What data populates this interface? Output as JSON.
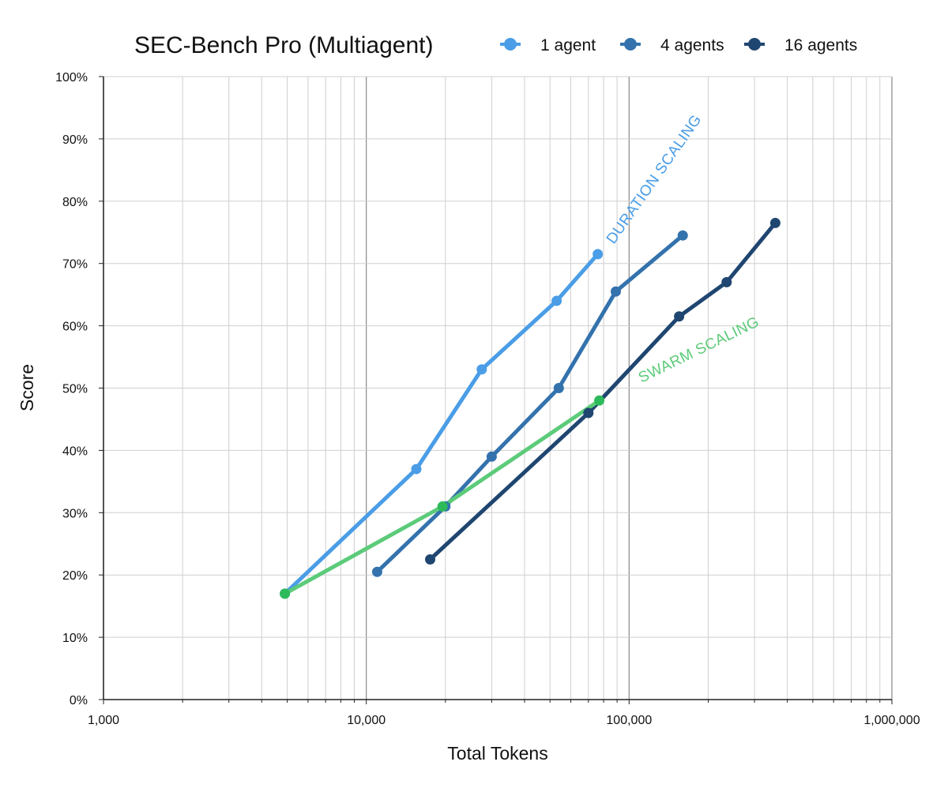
{
  "chart_data": {
    "type": "line",
    "title": "SEC-Bench Pro (Multiagent)",
    "xlabel": "Total Tokens",
    "ylabel": "Score",
    "x_scale": "log",
    "xlim": [
      1000,
      1000000
    ],
    "ylim": [
      0,
      100
    ],
    "x_ticks": [
      {
        "value": 1000,
        "label": "1,000"
      },
      {
        "value": 10000,
        "label": "10,000"
      },
      {
        "value": 100000,
        "label": "100,000"
      },
      {
        "value": 1000000,
        "label": "1,000,000"
      }
    ],
    "y_ticks": [
      {
        "value": 0,
        "label": "0%"
      },
      {
        "value": 10,
        "label": "10%"
      },
      {
        "value": 20,
        "label": "20%"
      },
      {
        "value": 30,
        "label": "30%"
      },
      {
        "value": 40,
        "label": "40%"
      },
      {
        "value": 50,
        "label": "50%"
      },
      {
        "value": 60,
        "label": "60%"
      },
      {
        "value": 70,
        "label": "70%"
      },
      {
        "value": 80,
        "label": "80%"
      },
      {
        "value": 90,
        "label": "90%"
      },
      {
        "value": 100,
        "label": "100%"
      }
    ],
    "grid": true,
    "legend_position": "top-right",
    "series": [
      {
        "name": "1 agent",
        "color": "#4a9de6",
        "x": [
          4900,
          15500,
          27500,
          53000,
          76000
        ],
        "y": [
          17,
          37,
          53,
          64,
          71.5
        ]
      },
      {
        "name": "4 agents",
        "color": "#3372ad",
        "x": [
          11000,
          20000,
          30000,
          54000,
          89000,
          160000
        ],
        "y": [
          20.5,
          31,
          39,
          50,
          65.5,
          74.5
        ]
      },
      {
        "name": "16 agents",
        "color": "#1f4670",
        "x": [
          17500,
          70000,
          155000,
          235000,
          360000
        ],
        "y": [
          22.5,
          46,
          61.5,
          67,
          76.5
        ]
      }
    ],
    "overlay_series": [
      {
        "name": "",
        "color": "#5ccb7a",
        "marker_color": "#2dba5a",
        "x": [
          4900,
          19500,
          77000
        ],
        "y": [
          17,
          31,
          48
        ]
      }
    ],
    "annotations": [
      {
        "text": "DURATION SCALING",
        "color": "#4a9de6"
      },
      {
        "text": "SWARM SCALING",
        "color": "#5ccb7a"
      }
    ]
  }
}
